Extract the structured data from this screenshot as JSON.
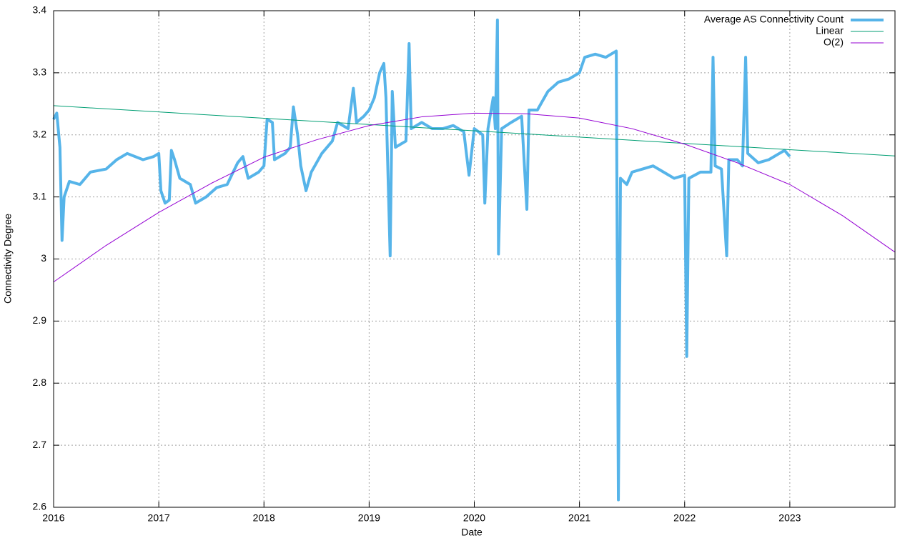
{
  "chart_data": {
    "type": "line",
    "xlabel": "Date",
    "ylabel": "Connectivity Degree",
    "xlim": [
      2016,
      2024
    ],
    "xticks": [
      2016,
      2017,
      2018,
      2019,
      2020,
      2021,
      2022,
      2023
    ],
    "ylim": [
      2.6,
      3.4
    ],
    "yticks": [
      2.6,
      2.7,
      2.8,
      2.9,
      3,
      3.1,
      3.2,
      3.3,
      3.4
    ],
    "grid": true,
    "legend": "top-right",
    "series": [
      {
        "name": "Average AS Connectivity Count",
        "color": "#56b4e9",
        "width": 4,
        "x": [
          2016.0,
          2016.03,
          2016.06,
          2016.08,
          2016.1,
          2016.15,
          2016.25,
          2016.35,
          2016.5,
          2016.6,
          2016.7,
          2016.85,
          2016.95,
          2017.0,
          2017.02,
          2017.06,
          2017.1,
          2017.12,
          2017.15,
          2017.2,
          2017.3,
          2017.35,
          2017.45,
          2017.55,
          2017.65,
          2017.75,
          2017.8,
          2017.85,
          2017.95,
          2018.0,
          2018.03,
          2018.08,
          2018.1,
          2018.2,
          2018.25,
          2018.28,
          2018.32,
          2018.35,
          2018.4,
          2018.45,
          2018.55,
          2018.65,
          2018.7,
          2018.8,
          2018.85,
          2018.88,
          2018.95,
          2019.0,
          2019.05,
          2019.1,
          2019.14,
          2019.16,
          2019.2,
          2019.22,
          2019.25,
          2019.35,
          2019.38,
          2019.4,
          2019.5,
          2019.6,
          2019.7,
          2019.8,
          2019.9,
          2019.95,
          2020.0,
          2020.08,
          2020.1,
          2020.13,
          2020.18,
          2020.2,
          2020.22,
          2020.23,
          2020.26,
          2020.35,
          2020.45,
          2020.5,
          2020.52,
          2020.6,
          2020.7,
          2020.8,
          2020.9,
          2021.0,
          2021.05,
          2021.15,
          2021.25,
          2021.3,
          2021.35,
          2021.37,
          2021.39,
          2021.45,
          2021.5,
          2021.6,
          2021.7,
          2021.8,
          2021.9,
          2022.0,
          2022.02,
          2022.04,
          2022.15,
          2022.25,
          2022.27,
          2022.29,
          2022.35,
          2022.4,
          2022.42,
          2022.5,
          2022.55,
          2022.58,
          2022.6,
          2022.7,
          2022.8,
          2022.9,
          2022.95,
          2023.0
        ],
        "values": [
          3.225,
          3.235,
          3.18,
          3.03,
          3.1,
          3.125,
          3.12,
          3.14,
          3.145,
          3.16,
          3.17,
          3.16,
          3.165,
          3.17,
          3.11,
          3.09,
          3.095,
          3.175,
          3.16,
          3.13,
          3.12,
          3.09,
          3.1,
          3.115,
          3.12,
          3.155,
          3.165,
          3.13,
          3.14,
          3.15,
          3.225,
          3.22,
          3.16,
          3.17,
          3.18,
          3.245,
          3.2,
          3.15,
          3.11,
          3.14,
          3.17,
          3.19,
          3.22,
          3.21,
          3.275,
          3.22,
          3.23,
          3.24,
          3.26,
          3.3,
          3.315,
          3.26,
          3.005,
          3.27,
          3.18,
          3.19,
          3.347,
          3.21,
          3.22,
          3.21,
          3.21,
          3.215,
          3.205,
          3.135,
          3.21,
          3.2,
          3.09,
          3.21,
          3.26,
          3.21,
          3.385,
          3.008,
          3.21,
          3.22,
          3.23,
          3.08,
          3.24,
          3.24,
          3.27,
          3.285,
          3.29,
          3.3,
          3.325,
          3.33,
          3.325,
          3.33,
          3.335,
          2.612,
          3.13,
          3.12,
          3.14,
          3.145,
          3.15,
          3.14,
          3.13,
          3.135,
          2.843,
          3.13,
          3.14,
          3.14,
          3.325,
          3.15,
          3.145,
          3.005,
          3.16,
          3.16,
          3.15,
          3.325,
          3.17,
          3.155,
          3.16,
          3.17,
          3.175,
          3.165
        ]
      },
      {
        "name": "Linear",
        "color": "#009e73",
        "width": 1,
        "x": [
          2016,
          2024
        ],
        "values": [
          3.247,
          3.166
        ]
      },
      {
        "name": "O(2)",
        "color": "#9400d3",
        "width": 1,
        "x": [
          2016,
          2016.5,
          2017,
          2017.5,
          2018,
          2018.5,
          2019,
          2019.5,
          2020,
          2020.5,
          2021,
          2021.5,
          2022,
          2022.5,
          2023,
          2023.5,
          2024
        ],
        "values": [
          2.963,
          3.022,
          3.075,
          3.122,
          3.164,
          3.192,
          3.215,
          3.229,
          3.235,
          3.234,
          3.227,
          3.21,
          3.185,
          3.155,
          3.12,
          3.07,
          3.011
        ]
      }
    ]
  }
}
